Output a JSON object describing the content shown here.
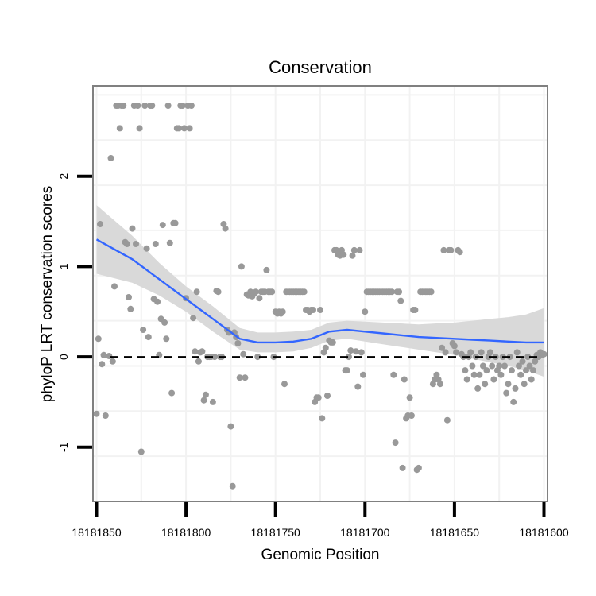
{
  "chart_data": {
    "type": "scatter",
    "title": "Conservation",
    "xlabel": "Genomic Position",
    "ylabel": "phyloP LRT conservation scores",
    "xlim": [
      18181852,
      18181598
    ],
    "ylim": [
      -1.6,
      3.0
    ],
    "x_reversed": true,
    "x_ticks": [
      18181850,
      18181800,
      18181750,
      18181700,
      18181650,
      18181600
    ],
    "x_tick_labels": [
      "18181850",
      "18181800",
      "18181750",
      "18181700",
      "18181650",
      "18181600"
    ],
    "y_ticks": [
      -1,
      0,
      1,
      2
    ],
    "y_tick_labels": [
      "-1",
      "0",
      "1",
      "2"
    ],
    "reference_line": {
      "y": 0,
      "style": "dashed"
    },
    "grid": true,
    "colors": {
      "points": "#999999",
      "smooth_line": "#3366FF",
      "ribbon": "#D9D9D9",
      "panel_border": "#808080",
      "grid": "#F2F2F2"
    },
    "points": [
      [
        18181850,
        -0.63
      ],
      [
        18181849,
        0.2
      ],
      [
        18181848,
        1.47
      ],
      [
        18181847,
        -0.08
      ],
      [
        18181846,
        0.02
      ],
      [
        18181845,
        -0.65
      ],
      [
        18181843,
        0.01
      ],
      [
        18181842,
        2.2
      ],
      [
        18181841,
        -0.05
      ],
      [
        18181840,
        0.78
      ],
      [
        18181839,
        2.78
      ],
      [
        18181838,
        2.78
      ],
      [
        18181837,
        2.53
      ],
      [
        18181836,
        2.78
      ],
      [
        18181835,
        2.78
      ],
      [
        18181834,
        1.27
      ],
      [
        18181833,
        1.25
      ],
      [
        18181832,
        0.66
      ],
      [
        18181831,
        0.53
      ],
      [
        18181830,
        1.42
      ],
      [
        18181829,
        2.78
      ],
      [
        18181828,
        1.25
      ],
      [
        18181827,
        2.78
      ],
      [
        18181826,
        2.53
      ],
      [
        18181825,
        -1.05
      ],
      [
        18181824,
        0.3
      ],
      [
        18181823,
        2.78
      ],
      [
        18181822,
        1.2
      ],
      [
        18181821,
        0.22
      ],
      [
        18181820,
        2.78
      ],
      [
        18181819,
        2.78
      ],
      [
        18181818,
        0.64
      ],
      [
        18181817,
        1.25
      ],
      [
        18181816,
        0.61
      ],
      [
        18181815,
        0.02
      ],
      [
        18181814,
        0.42
      ],
      [
        18181813,
        1.46
      ],
      [
        18181812,
        0.38
      ],
      [
        18181811,
        0.2
      ],
      [
        18181810,
        2.78
      ],
      [
        18181809,
        1.26
      ],
      [
        18181808,
        -0.4
      ],
      [
        18181807,
        1.48
      ],
      [
        18181806,
        1.48
      ],
      [
        18181805,
        2.53
      ],
      [
        18181804,
        2.53
      ],
      [
        18181803,
        2.78
      ],
      [
        18181802,
        2.78
      ],
      [
        18181801,
        2.53
      ],
      [
        18181800,
        0.65
      ],
      [
        18181799,
        2.78
      ],
      [
        18181798,
        2.53
      ],
      [
        18181797,
        2.78
      ],
      [
        18181796,
        0.43
      ],
      [
        18181795,
        0.06
      ],
      [
        18181794,
        0.72
      ],
      [
        18181793,
        -0.05
      ],
      [
        18181792,
        0.05
      ],
      [
        18181791,
        0.06
      ],
      [
        18181790,
        -0.48
      ],
      [
        18181789,
        -0.42
      ],
      [
        18181788,
        0.0
      ],
      [
        18181787,
        0.0
      ],
      [
        18181786,
        0.0
      ],
      [
        18181785,
        -0.5
      ],
      [
        18181784,
        0.0
      ],
      [
        18181783,
        0.73
      ],
      [
        18181782,
        0.72
      ],
      [
        18181781,
        0.0
      ],
      [
        18181780,
        0.0
      ],
      [
        18181779,
        1.47
      ],
      [
        18181778,
        1.42
      ],
      [
        18181777,
        0.3
      ],
      [
        18181776,
        0.27
      ],
      [
        18181775,
        -0.77
      ],
      [
        18181774,
        -1.43
      ],
      [
        18181773,
        0.27
      ],
      [
        18181772,
        0.22
      ],
      [
        18181771,
        0.15
      ],
      [
        18181770,
        -0.23
      ],
      [
        18181769,
        1.0
      ],
      [
        18181768,
        0.03
      ],
      [
        18181767,
        -0.23
      ],
      [
        18181766,
        0.69
      ],
      [
        18181765,
        0.68
      ],
      [
        18181764,
        0.72
      ],
      [
        18181763,
        0.67
      ],
      [
        18181762,
        0.7
      ],
      [
        18181761,
        0.72
      ],
      [
        18181760,
        0.0
      ],
      [
        18181759,
        0.65
      ],
      [
        18181758,
        0.72
      ],
      [
        18181757,
        0.72
      ],
      [
        18181756,
        0.72
      ],
      [
        18181755,
        0.96
      ],
      [
        18181754,
        0.72
      ],
      [
        18181753,
        0.72
      ],
      [
        18181752,
        0.72
      ],
      [
        18181751,
        0.0
      ],
      [
        18181750,
        0.5
      ],
      [
        18181749,
        0.48
      ],
      [
        18181748,
        0.5
      ],
      [
        18181747,
        0.48
      ],
      [
        18181746,
        0.5
      ],
      [
        18181745,
        -0.3
      ],
      [
        18181744,
        0.72
      ],
      [
        18181743,
        0.72
      ],
      [
        18181742,
        0.72
      ],
      [
        18181741,
        0.72
      ],
      [
        18181740,
        0.72
      ],
      [
        18181739,
        0.72
      ],
      [
        18181738,
        0.72
      ],
      [
        18181737,
        0.72
      ],
      [
        18181736,
        0.72
      ],
      [
        18181735,
        0.72
      ],
      [
        18181734,
        0.72
      ],
      [
        18181733,
        0.52
      ],
      [
        18181732,
        0.52
      ],
      [
        18181731,
        0.5
      ],
      [
        18181730,
        0.52
      ],
      [
        18181729,
        0.52
      ],
      [
        18181728,
        -0.5
      ],
      [
        18181727,
        -0.45
      ],
      [
        18181726,
        -0.45
      ],
      [
        18181725,
        0.52
      ],
      [
        18181724,
        -0.68
      ],
      [
        18181723,
        0.05
      ],
      [
        18181722,
        0.1
      ],
      [
        18181721,
        -0.43
      ],
      [
        18181720,
        0.18
      ],
      [
        18181719,
        0.16
      ],
      [
        18181718,
        0.16
      ],
      [
        18181717,
        1.18
      ],
      [
        18181716,
        1.18
      ],
      [
        18181715,
        1.13
      ],
      [
        18181714,
        1.12
      ],
      [
        18181713,
        1.18
      ],
      [
        18181712,
        1.13
      ],
      [
        18181711,
        -0.15
      ],
      [
        18181710,
        -0.15
      ],
      [
        18181709,
        0.0
      ],
      [
        18181708,
        0.07
      ],
      [
        18181707,
        1.12
      ],
      [
        18181706,
        1.18
      ],
      [
        18181705,
        0.06
      ],
      [
        18181704,
        -0.33
      ],
      [
        18181703,
        1.18
      ],
      [
        18181702,
        0.05
      ],
      [
        18181701,
        -0.2
      ],
      [
        18181700,
        0.5
      ],
      [
        18181699,
        0.72
      ],
      [
        18181698,
        0.72
      ],
      [
        18181697,
        0.72
      ],
      [
        18181696,
        0.72
      ],
      [
        18181695,
        0.72
      ],
      [
        18181694,
        0.72
      ],
      [
        18181693,
        0.72
      ],
      [
        18181692,
        0.72
      ],
      [
        18181691,
        0.72
      ],
      [
        18181690,
        0.72
      ],
      [
        18181689,
        0.72
      ],
      [
        18181688,
        0.72
      ],
      [
        18181687,
        0.72
      ],
      [
        18181686,
        0.72
      ],
      [
        18181685,
        0.72
      ],
      [
        18181684,
        -0.2
      ],
      [
        18181683,
        -0.95
      ],
      [
        18181682,
        0.72
      ],
      [
        18181681,
        0.72
      ],
      [
        18181680,
        0.62
      ],
      [
        18181679,
        -1.23
      ],
      [
        18181678,
        -0.25
      ],
      [
        18181677,
        -0.68
      ],
      [
        18181676,
        -0.65
      ],
      [
        18181675,
        -0.45
      ],
      [
        18181674,
        -0.65
      ],
      [
        18181673,
        0.52
      ],
      [
        18181672,
        0.52
      ],
      [
        18181671,
        -1.25
      ],
      [
        18181670,
        -1.23
      ],
      [
        18181669,
        0.72
      ],
      [
        18181668,
        0.72
      ],
      [
        18181667,
        0.72
      ],
      [
        18181666,
        0.72
      ],
      [
        18181665,
        0.72
      ],
      [
        18181664,
        0.72
      ],
      [
        18181663,
        0.72
      ],
      [
        18181662,
        -0.3
      ],
      [
        18181661,
        -0.25
      ],
      [
        18181660,
        -0.2
      ],
      [
        18181659,
        -0.25
      ],
      [
        18181658,
        -0.3
      ],
      [
        18181657,
        0.1
      ],
      [
        18181656,
        1.18
      ],
      [
        18181655,
        0.05
      ],
      [
        18181654,
        -0.7
      ],
      [
        18181653,
        1.18
      ],
      [
        18181652,
        1.18
      ],
      [
        18181651,
        0.15
      ],
      [
        18181650,
        0.12
      ],
      [
        18181649,
        0.05
      ],
      [
        18181648,
        1.18
      ],
      [
        18181647,
        1.16
      ],
      [
        18181646,
        0.03
      ],
      [
        18181645,
        0.0
      ],
      [
        18181644,
        -0.15
      ],
      [
        18181643,
        -0.25
      ],
      [
        18181642,
        0.0
      ],
      [
        18181641,
        0.05
      ],
      [
        18181640,
        -0.1
      ],
      [
        18181639,
        -0.2
      ],
      [
        18181638,
        0.0
      ],
      [
        18181637,
        -0.35
      ],
      [
        18181636,
        -0.2
      ],
      [
        18181635,
        0.05
      ],
      [
        18181634,
        -0.1
      ],
      [
        18181633,
        -0.3
      ],
      [
        18181632,
        -0.15
      ],
      [
        18181631,
        0.0
      ],
      [
        18181630,
        0.05
      ],
      [
        18181629,
        -0.1
      ],
      [
        18181628,
        -0.25
      ],
      [
        18181627,
        0.0
      ],
      [
        18181626,
        -0.15
      ],
      [
        18181625,
        -0.1
      ],
      [
        18181624,
        -0.2
      ],
      [
        18181623,
        0.0
      ],
      [
        18181622,
        -0.1
      ],
      [
        18181621,
        -0.4
      ],
      [
        18181620,
        -0.3
      ],
      [
        18181619,
        0.0
      ],
      [
        18181618,
        -0.15
      ],
      [
        18181617,
        -0.5
      ],
      [
        18181616,
        -0.35
      ],
      [
        18181615,
        0.05
      ],
      [
        18181614,
        -0.1
      ],
      [
        18181613,
        -0.2
      ],
      [
        18181612,
        -0.05
      ],
      [
        18181611,
        -0.3
      ],
      [
        18181610,
        -0.15
      ],
      [
        18181609,
        0.0
      ],
      [
        18181608,
        -0.1
      ],
      [
        18181607,
        -0.25
      ],
      [
        18181606,
        -0.15
      ],
      [
        18181605,
        -0.05
      ],
      [
        18181604,
        0.02
      ],
      [
        18181603,
        0.0
      ],
      [
        18181602,
        0.05
      ],
      [
        18181601,
        0.02
      ],
      [
        18181600,
        0.03
      ]
    ],
    "smooth": {
      "x": [
        18181850,
        18181830,
        18181815,
        18181800,
        18181785,
        18181770,
        18181760,
        18181750,
        18181740,
        18181730,
        18181720,
        18181710,
        18181700,
        18181690,
        18181680,
        18181670,
        18181660,
        18181650,
        18181640,
        18181630,
        18181620,
        18181610,
        18181600
      ],
      "y": [
        1.3,
        1.08,
        0.86,
        0.64,
        0.42,
        0.2,
        0.16,
        0.16,
        0.17,
        0.2,
        0.28,
        0.3,
        0.28,
        0.26,
        0.24,
        0.22,
        0.21,
        0.2,
        0.19,
        0.18,
        0.17,
        0.16,
        0.16
      ],
      "lower": [
        0.92,
        0.82,
        0.68,
        0.5,
        0.28,
        0.08,
        0.05,
        0.05,
        0.06,
        0.1,
        0.18,
        0.2,
        0.17,
        0.14,
        0.11,
        0.08,
        0.05,
        0.02,
        -0.02,
        -0.06,
        -0.1,
        -0.15,
        -0.22
      ],
      "upper": [
        1.68,
        1.34,
        1.04,
        0.78,
        0.56,
        0.32,
        0.27,
        0.27,
        0.28,
        0.3,
        0.38,
        0.4,
        0.39,
        0.38,
        0.37,
        0.36,
        0.37,
        0.38,
        0.4,
        0.42,
        0.44,
        0.47,
        0.54
      ]
    }
  }
}
